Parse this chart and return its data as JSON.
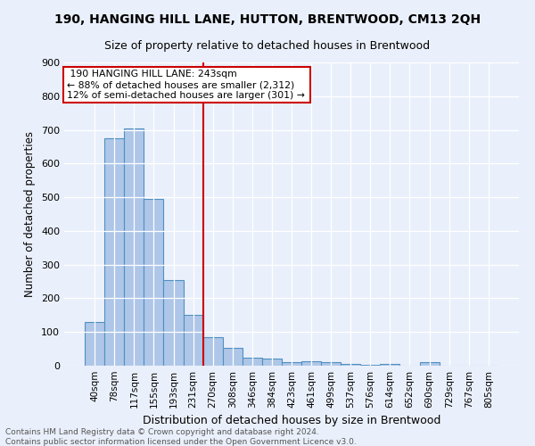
{
  "title": "190, HANGING HILL LANE, HUTTON, BRENTWOOD, CM13 2QH",
  "subtitle": "Size of property relative to detached houses in Brentwood",
  "xlabel": "Distribution of detached houses by size in Brentwood",
  "ylabel": "Number of detached properties",
  "footnote1": "Contains HM Land Registry data © Crown copyright and database right 2024.",
  "footnote2": "Contains public sector information licensed under the Open Government Licence v3.0.",
  "bin_labels": [
    "40sqm",
    "78sqm",
    "117sqm",
    "155sqm",
    "193sqm",
    "231sqm",
    "270sqm",
    "308sqm",
    "346sqm",
    "384sqm",
    "423sqm",
    "461sqm",
    "499sqm",
    "537sqm",
    "576sqm",
    "614sqm",
    "652sqm",
    "690sqm",
    "729sqm",
    "767sqm",
    "805sqm"
  ],
  "bar_values": [
    130,
    675,
    705,
    495,
    255,
    152,
    85,
    52,
    23,
    20,
    10,
    12,
    10,
    6,
    3,
    5,
    1,
    10,
    0,
    0,
    0
  ],
  "bar_color": "#aec6e8",
  "bar_edge_color": "#4f90c1",
  "reference_line_x": 5.5,
  "reference_line_label": "190 HANGING HILL LANE: 243sqm",
  "annotation_line1": "← 88% of detached houses are smaller (2,312)",
  "annotation_line2": "12% of semi-detached houses are larger (301) →",
  "annotation_box_color": "#ffffff",
  "annotation_box_edge": "#cc0000",
  "ref_line_color": "#cc0000",
  "ylim": [
    0,
    900
  ],
  "yticks": [
    0,
    100,
    200,
    300,
    400,
    500,
    600,
    700,
    800,
    900
  ],
  "bg_color": "#eaf0fb",
  "grid_color": "#ffffff"
}
